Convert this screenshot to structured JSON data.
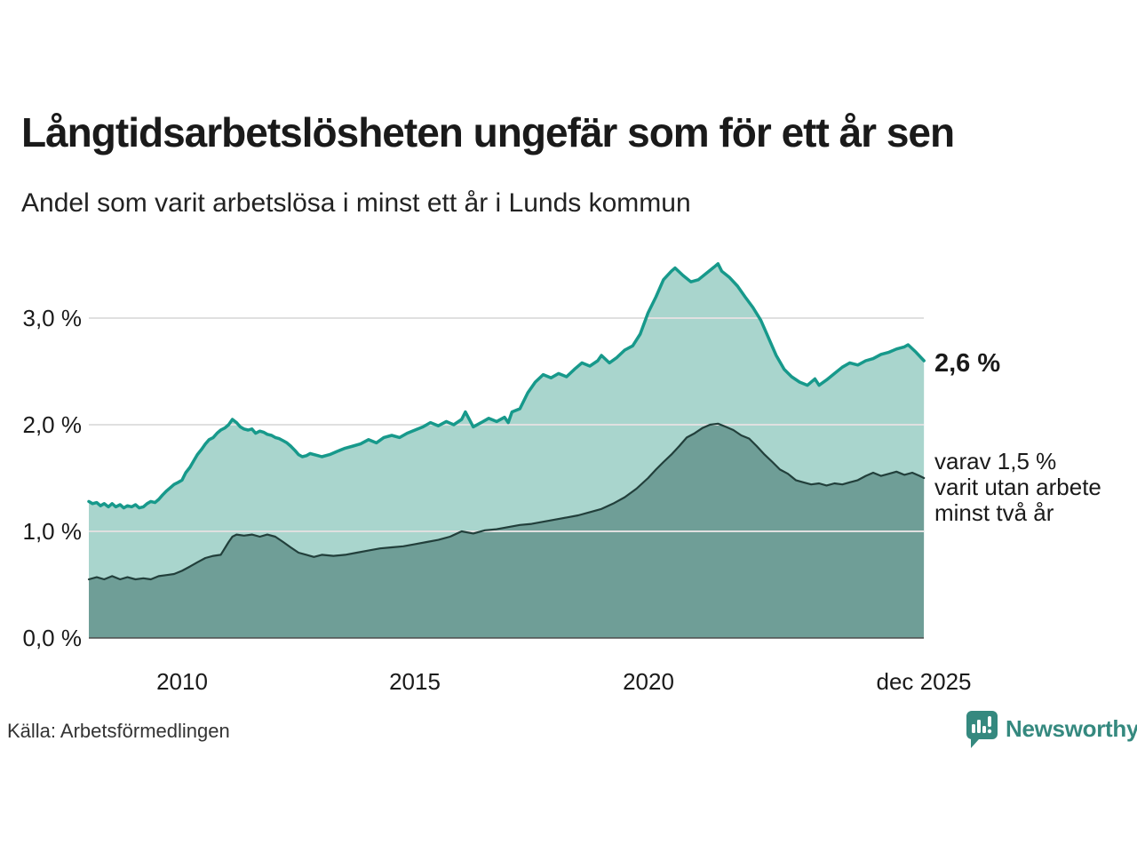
{
  "chart_data": {
    "type": "area",
    "title": "Långtidsarbetslösheten ungefär som för ett år sen",
    "subtitle": "Andel som varit arbetslösa i minst ett år i Lunds kommun",
    "source": "Källa: Arbetsförmedlingen",
    "x_domain": [
      2008.0,
      2025.917
    ],
    "ylim": [
      0,
      3.6
    ],
    "grid": true,
    "legend_position": "none",
    "yticks": [
      {
        "value": 0.0,
        "label": "0,0 %"
      },
      {
        "value": 1.0,
        "label": "1,0 %"
      },
      {
        "value": 2.0,
        "label": "2,0 %"
      },
      {
        "value": 3.0,
        "label": "3,0 %"
      }
    ],
    "xticks": [
      {
        "value": 2010.0,
        "label": "2010"
      },
      {
        "value": 2015.0,
        "label": "2015"
      },
      {
        "value": 2020.0,
        "label": "2020"
      },
      {
        "value": 2025.917,
        "label": "dec 2025"
      }
    ],
    "annotations": {
      "latest_total": "2,6 %",
      "latest_secondary": "varav 1,5 %\nvarit utan arbete\nminst två år"
    },
    "colors": {
      "series_1_line": "#17998b",
      "series_1_fill": "#a9d5cd",
      "series_2_line": "#223f3b",
      "series_2_fill": "#6f9e97",
      "grid": "#e0e0e0",
      "axis": "#4d4d4d",
      "brand_teal": "#35897f"
    },
    "series": [
      {
        "name": "Arbetslösa minst ett år",
        "color": "#17998b",
        "fill": "#a9d5cd",
        "width": 3.5,
        "points": [
          [
            2008.0,
            1.28
          ],
          [
            2008.08,
            1.26
          ],
          [
            2008.17,
            1.27
          ],
          [
            2008.25,
            1.24
          ],
          [
            2008.33,
            1.26
          ],
          [
            2008.42,
            1.23
          ],
          [
            2008.5,
            1.26
          ],
          [
            2008.58,
            1.23
          ],
          [
            2008.67,
            1.25
          ],
          [
            2008.75,
            1.22
          ],
          [
            2008.83,
            1.24
          ],
          [
            2008.92,
            1.23
          ],
          [
            2009.0,
            1.25
          ],
          [
            2009.08,
            1.22
          ],
          [
            2009.17,
            1.23
          ],
          [
            2009.25,
            1.26
          ],
          [
            2009.33,
            1.28
          ],
          [
            2009.42,
            1.27
          ],
          [
            2009.5,
            1.3
          ],
          [
            2009.58,
            1.34
          ],
          [
            2009.67,
            1.38
          ],
          [
            2009.75,
            1.41
          ],
          [
            2009.83,
            1.44
          ],
          [
            2009.92,
            1.46
          ],
          [
            2010.0,
            1.48
          ],
          [
            2010.08,
            1.55
          ],
          [
            2010.17,
            1.6
          ],
          [
            2010.25,
            1.66
          ],
          [
            2010.33,
            1.72
          ],
          [
            2010.42,
            1.77
          ],
          [
            2010.5,
            1.82
          ],
          [
            2010.58,
            1.86
          ],
          [
            2010.67,
            1.88
          ],
          [
            2010.75,
            1.92
          ],
          [
            2010.83,
            1.95
          ],
          [
            2010.92,
            1.97
          ],
          [
            2011.0,
            2.0
          ],
          [
            2011.08,
            2.05
          ],
          [
            2011.17,
            2.02
          ],
          [
            2011.25,
            1.98
          ],
          [
            2011.33,
            1.96
          ],
          [
            2011.42,
            1.95
          ],
          [
            2011.5,
            1.96
          ],
          [
            2011.58,
            1.92
          ],
          [
            2011.67,
            1.94
          ],
          [
            2011.75,
            1.93
          ],
          [
            2011.83,
            1.91
          ],
          [
            2011.92,
            1.9
          ],
          [
            2012.0,
            1.88
          ],
          [
            2012.08,
            1.87
          ],
          [
            2012.17,
            1.85
          ],
          [
            2012.25,
            1.83
          ],
          [
            2012.33,
            1.8
          ],
          [
            2012.42,
            1.76
          ],
          [
            2012.5,
            1.72
          ],
          [
            2012.58,
            1.7
          ],
          [
            2012.67,
            1.71
          ],
          [
            2012.75,
            1.73
          ],
          [
            2012.83,
            1.72
          ],
          [
            2012.92,
            1.71
          ],
          [
            2013.0,
            1.7
          ],
          [
            2013.17,
            1.72
          ],
          [
            2013.33,
            1.75
          ],
          [
            2013.5,
            1.78
          ],
          [
            2013.67,
            1.8
          ],
          [
            2013.83,
            1.82
          ],
          [
            2014.0,
            1.86
          ],
          [
            2014.17,
            1.83
          ],
          [
            2014.33,
            1.88
          ],
          [
            2014.5,
            1.9
          ],
          [
            2014.67,
            1.88
          ],
          [
            2014.83,
            1.92
          ],
          [
            2015.0,
            1.95
          ],
          [
            2015.17,
            1.98
          ],
          [
            2015.33,
            2.02
          ],
          [
            2015.5,
            1.99
          ],
          [
            2015.67,
            2.03
          ],
          [
            2015.83,
            2.0
          ],
          [
            2016.0,
            2.05
          ],
          [
            2016.08,
            2.12
          ],
          [
            2016.25,
            1.98
          ],
          [
            2016.42,
            2.02
          ],
          [
            2016.58,
            2.06
          ],
          [
            2016.75,
            2.03
          ],
          [
            2016.92,
            2.07
          ],
          [
            2017.0,
            2.02
          ],
          [
            2017.08,
            2.12
          ],
          [
            2017.25,
            2.15
          ],
          [
            2017.42,
            2.3
          ],
          [
            2017.58,
            2.4
          ],
          [
            2017.75,
            2.47
          ],
          [
            2017.92,
            2.44
          ],
          [
            2018.08,
            2.48
          ],
          [
            2018.25,
            2.45
          ],
          [
            2018.42,
            2.52
          ],
          [
            2018.58,
            2.58
          ],
          [
            2018.75,
            2.55
          ],
          [
            2018.92,
            2.6
          ],
          [
            2019.0,
            2.65
          ],
          [
            2019.17,
            2.58
          ],
          [
            2019.33,
            2.63
          ],
          [
            2019.5,
            2.7
          ],
          [
            2019.67,
            2.74
          ],
          [
            2019.83,
            2.85
          ],
          [
            2020.0,
            3.05
          ],
          [
            2020.17,
            3.2
          ],
          [
            2020.33,
            3.36
          ],
          [
            2020.5,
            3.44
          ],
          [
            2020.58,
            3.47
          ],
          [
            2020.75,
            3.4
          ],
          [
            2020.92,
            3.34
          ],
          [
            2021.08,
            3.36
          ],
          [
            2021.25,
            3.42
          ],
          [
            2021.42,
            3.48
          ],
          [
            2021.5,
            3.51
          ],
          [
            2021.58,
            3.44
          ],
          [
            2021.75,
            3.38
          ],
          [
            2021.92,
            3.3
          ],
          [
            2022.08,
            3.2
          ],
          [
            2022.25,
            3.1
          ],
          [
            2022.42,
            2.98
          ],
          [
            2022.58,
            2.82
          ],
          [
            2022.75,
            2.65
          ],
          [
            2022.92,
            2.52
          ],
          [
            2023.08,
            2.45
          ],
          [
            2023.25,
            2.4
          ],
          [
            2023.42,
            2.37
          ],
          [
            2023.58,
            2.43
          ],
          [
            2023.67,
            2.37
          ],
          [
            2023.83,
            2.42
          ],
          [
            2024.0,
            2.48
          ],
          [
            2024.17,
            2.54
          ],
          [
            2024.33,
            2.58
          ],
          [
            2024.5,
            2.56
          ],
          [
            2024.67,
            2.6
          ],
          [
            2024.83,
            2.62
          ],
          [
            2025.0,
            2.66
          ],
          [
            2025.17,
            2.68
          ],
          [
            2025.33,
            2.71
          ],
          [
            2025.5,
            2.73
          ],
          [
            2025.58,
            2.75
          ],
          [
            2025.75,
            2.68
          ],
          [
            2025.92,
            2.6
          ]
        ]
      },
      {
        "name": "varav utan arbete minst två år",
        "color": "#223f3b",
        "fill": "#6f9e97",
        "width": 2.2,
        "points": [
          [
            2008.0,
            0.55
          ],
          [
            2008.17,
            0.57
          ],
          [
            2008.33,
            0.55
          ],
          [
            2008.5,
            0.58
          ],
          [
            2008.67,
            0.55
          ],
          [
            2008.83,
            0.57
          ],
          [
            2009.0,
            0.55
          ],
          [
            2009.17,
            0.56
          ],
          [
            2009.33,
            0.55
          ],
          [
            2009.5,
            0.58
          ],
          [
            2009.67,
            0.59
          ],
          [
            2009.83,
            0.6
          ],
          [
            2010.0,
            0.63
          ],
          [
            2010.17,
            0.67
          ],
          [
            2010.33,
            0.71
          ],
          [
            2010.5,
            0.75
          ],
          [
            2010.67,
            0.77
          ],
          [
            2010.83,
            0.78
          ],
          [
            2011.0,
            0.9
          ],
          [
            2011.08,
            0.95
          ],
          [
            2011.17,
            0.97
          ],
          [
            2011.33,
            0.96
          ],
          [
            2011.5,
            0.97
          ],
          [
            2011.67,
            0.95
          ],
          [
            2011.83,
            0.97
          ],
          [
            2012.0,
            0.95
          ],
          [
            2012.17,
            0.9
          ],
          [
            2012.33,
            0.85
          ],
          [
            2012.5,
            0.8
          ],
          [
            2012.67,
            0.78
          ],
          [
            2012.83,
            0.76
          ],
          [
            2013.0,
            0.78
          ],
          [
            2013.25,
            0.77
          ],
          [
            2013.5,
            0.78
          ],
          [
            2013.75,
            0.8
          ],
          [
            2014.0,
            0.82
          ],
          [
            2014.25,
            0.84
          ],
          [
            2014.5,
            0.85
          ],
          [
            2014.75,
            0.86
          ],
          [
            2015.0,
            0.88
          ],
          [
            2015.25,
            0.9
          ],
          [
            2015.5,
            0.92
          ],
          [
            2015.75,
            0.95
          ],
          [
            2016.0,
            1.0
          ],
          [
            2016.25,
            0.98
          ],
          [
            2016.5,
            1.01
          ],
          [
            2016.75,
            1.02
          ],
          [
            2017.0,
            1.04
          ],
          [
            2017.25,
            1.06
          ],
          [
            2017.5,
            1.07
          ],
          [
            2017.75,
            1.09
          ],
          [
            2018.0,
            1.11
          ],
          [
            2018.25,
            1.13
          ],
          [
            2018.5,
            1.15
          ],
          [
            2018.75,
            1.18
          ],
          [
            2019.0,
            1.21
          ],
          [
            2019.25,
            1.26
          ],
          [
            2019.5,
            1.32
          ],
          [
            2019.75,
            1.4
          ],
          [
            2020.0,
            1.5
          ],
          [
            2020.17,
            1.58
          ],
          [
            2020.33,
            1.65
          ],
          [
            2020.5,
            1.72
          ],
          [
            2020.67,
            1.8
          ],
          [
            2020.83,
            1.88
          ],
          [
            2021.0,
            1.92
          ],
          [
            2021.17,
            1.97
          ],
          [
            2021.33,
            2.0
          ],
          [
            2021.5,
            2.01
          ],
          [
            2021.67,
            1.98
          ],
          [
            2021.83,
            1.95
          ],
          [
            2022.0,
            1.9
          ],
          [
            2022.17,
            1.87
          ],
          [
            2022.33,
            1.8
          ],
          [
            2022.5,
            1.72
          ],
          [
            2022.67,
            1.65
          ],
          [
            2022.83,
            1.58
          ],
          [
            2023.0,
            1.54
          ],
          [
            2023.17,
            1.48
          ],
          [
            2023.33,
            1.46
          ],
          [
            2023.5,
            1.44
          ],
          [
            2023.67,
            1.45
          ],
          [
            2023.83,
            1.43
          ],
          [
            2024.0,
            1.45
          ],
          [
            2024.17,
            1.44
          ],
          [
            2024.33,
            1.46
          ],
          [
            2024.5,
            1.48
          ],
          [
            2024.67,
            1.52
          ],
          [
            2024.83,
            1.55
          ],
          [
            2025.0,
            1.52
          ],
          [
            2025.17,
            1.54
          ],
          [
            2025.33,
            1.56
          ],
          [
            2025.5,
            1.53
          ],
          [
            2025.67,
            1.55
          ],
          [
            2025.83,
            1.52
          ],
          [
            2025.92,
            1.5
          ]
        ]
      }
    ]
  },
  "footer": {
    "brand": "Newsworthy"
  }
}
